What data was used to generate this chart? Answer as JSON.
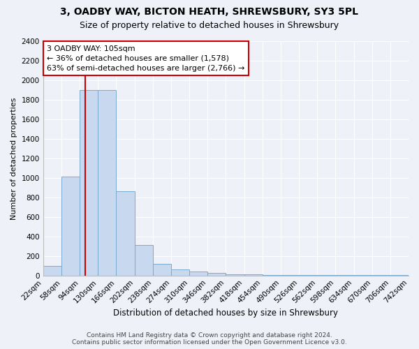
{
  "title1": "3, OADBY WAY, BICTON HEATH, SHREWSBURY, SY3 5PL",
  "title2": "Size of property relative to detached houses in Shrewsbury",
  "xlabel": "Distribution of detached houses by size in Shrewsbury",
  "ylabel": "Number of detached properties",
  "bin_edges": [
    22,
    58,
    94,
    130,
    166,
    202,
    238,
    274,
    310,
    346,
    382,
    418,
    454,
    490,
    526,
    562,
    598,
    634,
    670,
    706,
    742
  ],
  "bar_heights": [
    100,
    1010,
    1900,
    1900,
    860,
    310,
    120,
    60,
    40,
    25,
    15,
    10,
    8,
    5,
    4,
    3,
    3,
    2,
    2,
    2
  ],
  "bar_color": "#c8d8ee",
  "bar_edge_color": "#7aaad0",
  "property_size": 105,
  "vline_color": "#cc0000",
  "annotation_line1": "3 OADBY WAY: 105sqm",
  "annotation_line2": "← 36% of detached houses are smaller (1,578)",
  "annotation_line3": "63% of semi-detached houses are larger (2,766) →",
  "annotation_box_color": "#ffffff",
  "annotation_box_edge_color": "#cc0000",
  "ylim": [
    0,
    2400
  ],
  "yticks": [
    0,
    200,
    400,
    600,
    800,
    1000,
    1200,
    1400,
    1600,
    1800,
    2000,
    2200,
    2400
  ],
  "footer_text": "Contains HM Land Registry data © Crown copyright and database right 2024.\nContains public sector information licensed under the Open Government Licence v3.0.",
  "background_color": "#eef2f8",
  "grid_color": "#ffffff",
  "title1_fontsize": 10,
  "title2_fontsize": 9,
  "xlabel_fontsize": 8.5,
  "ylabel_fontsize": 8,
  "tick_fontsize": 7.5,
  "annotation_fontsize": 8,
  "footer_fontsize": 6.5
}
